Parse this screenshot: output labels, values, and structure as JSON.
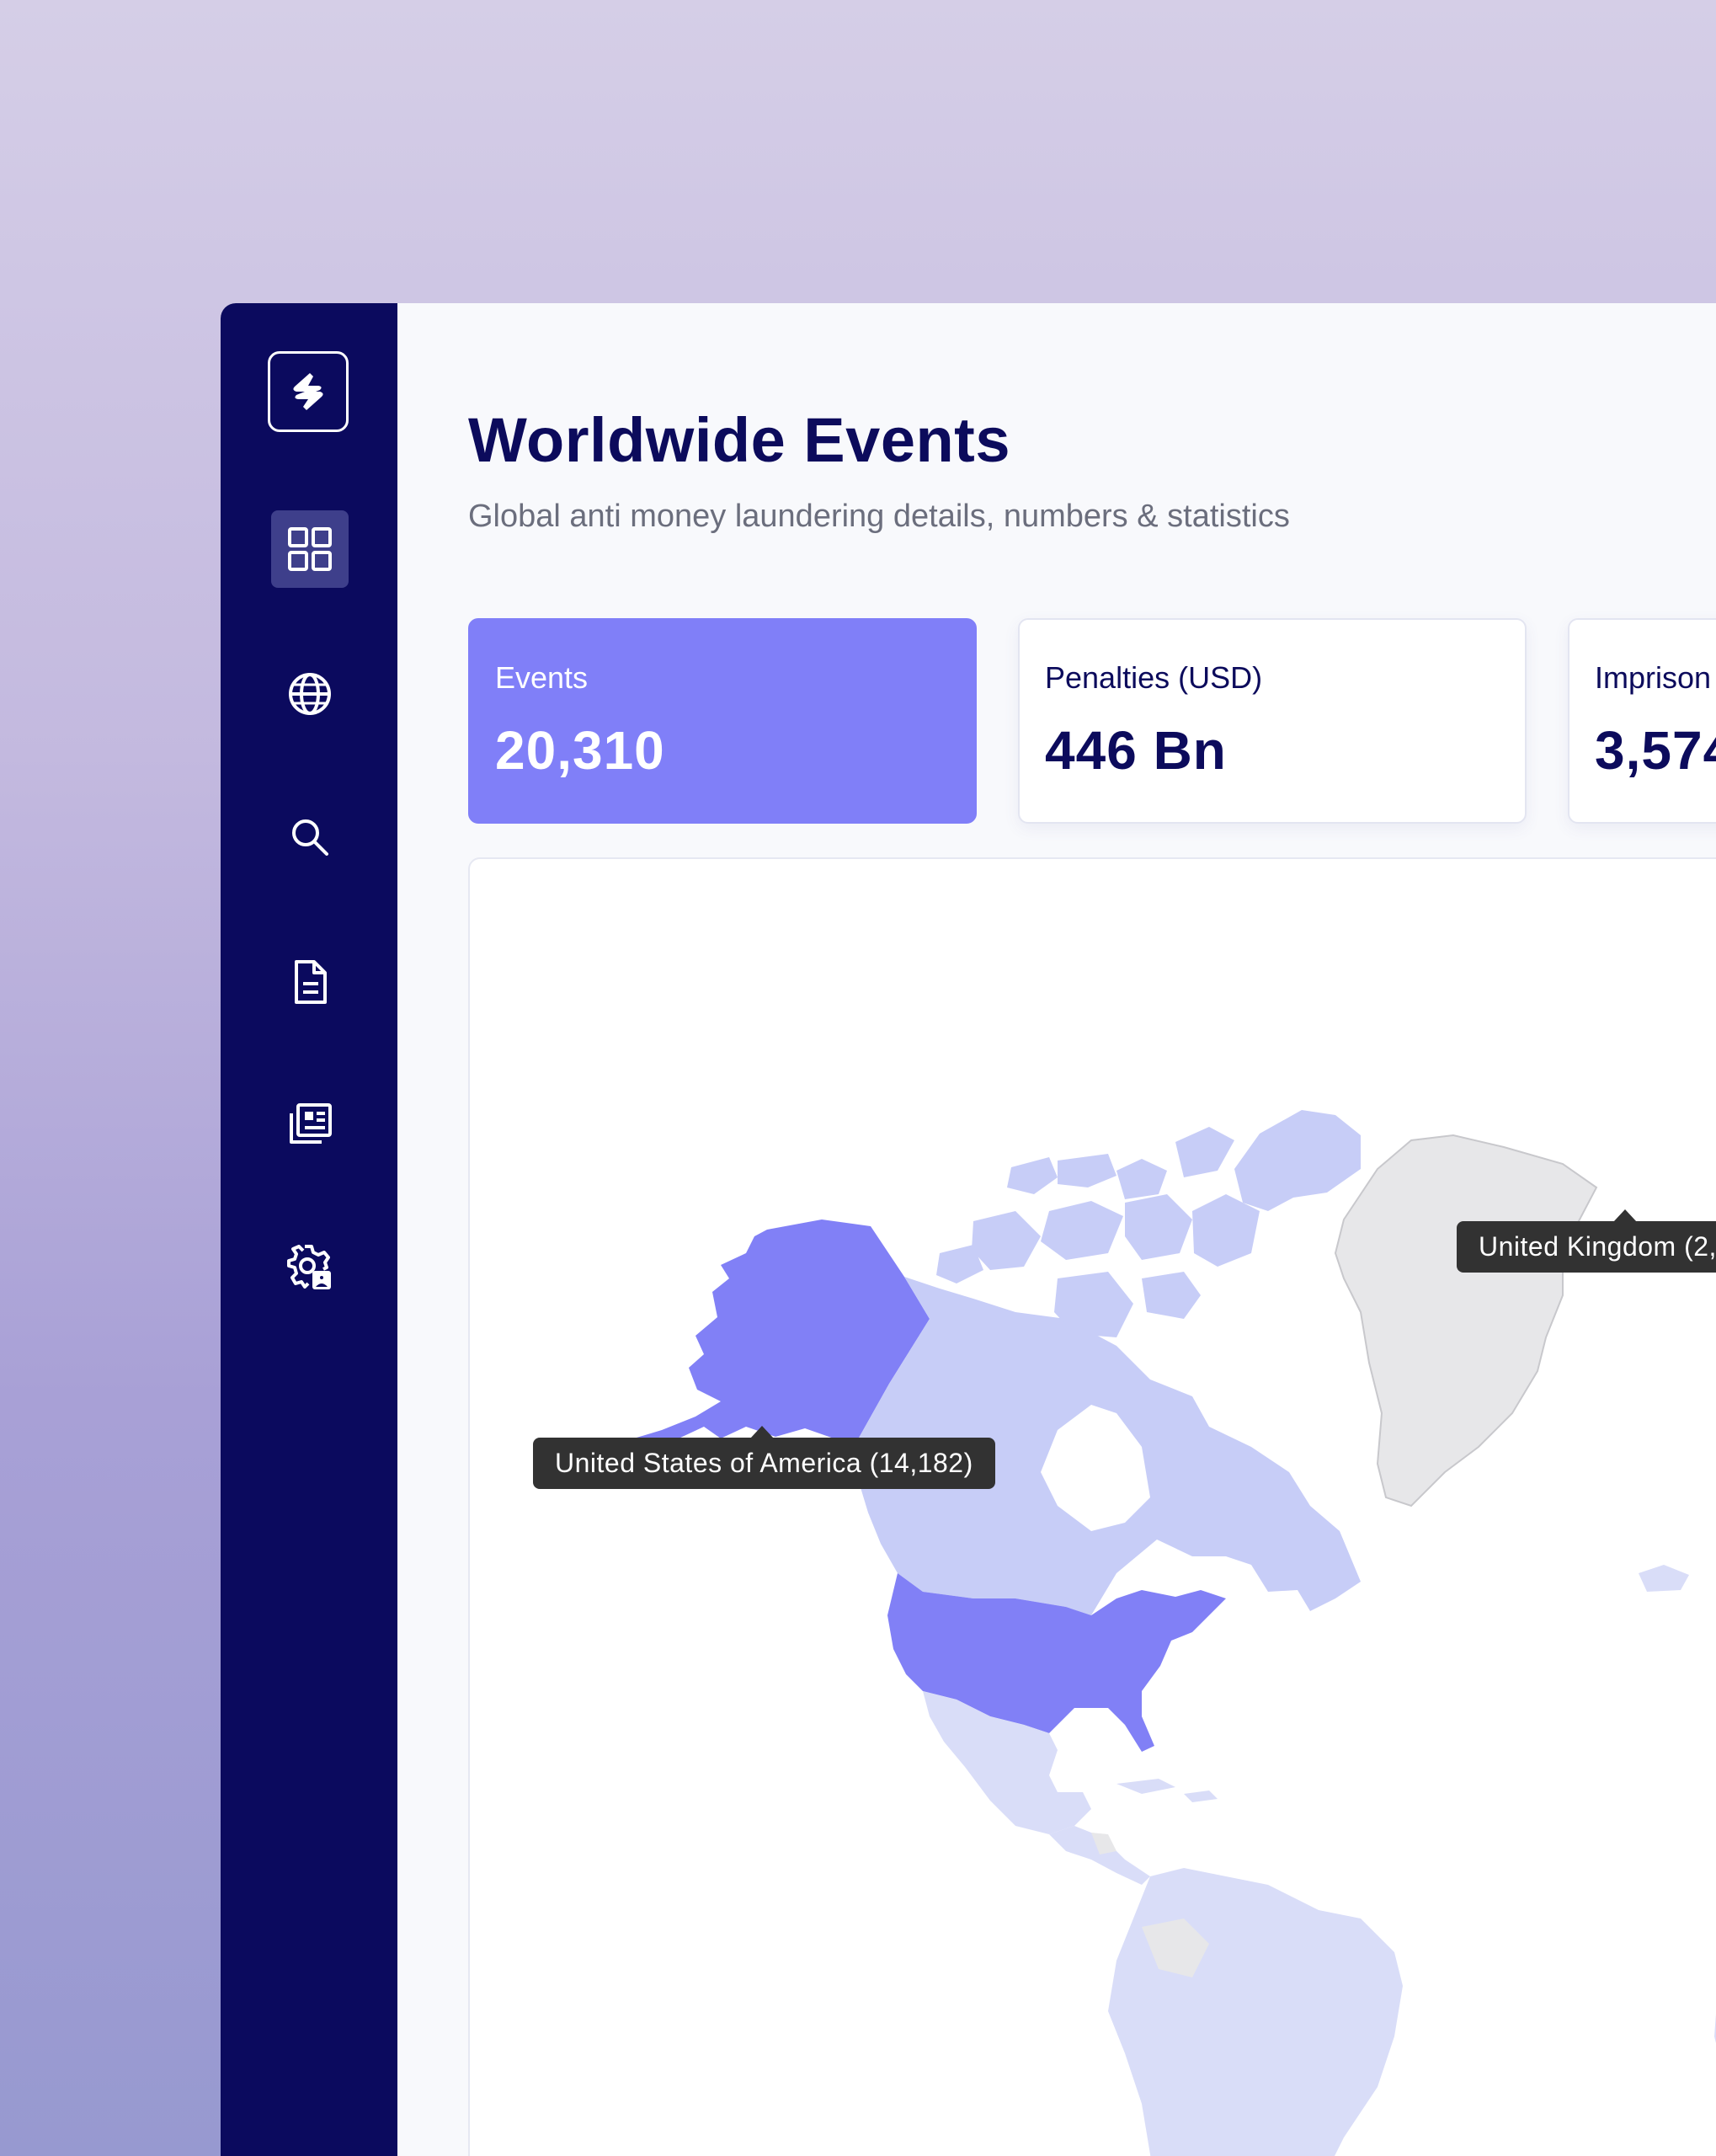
{
  "sidebar": {
    "logo_icon": "app-logo-icon",
    "items": [
      {
        "icon": "dashboard-grid-icon",
        "active": true
      },
      {
        "icon": "globe-icon",
        "active": false
      },
      {
        "icon": "search-icon",
        "active": false
      },
      {
        "icon": "document-icon",
        "active": false
      },
      {
        "icon": "news-icon",
        "active": false
      },
      {
        "icon": "user-settings-icon",
        "active": false
      }
    ]
  },
  "page": {
    "title": "Worldwide Events",
    "subtitle": "Global anti money laundering details, numbers & statistics"
  },
  "stats": [
    {
      "label": "Events",
      "value": "20,310",
      "highlighted": true
    },
    {
      "label": "Penalties (USD)",
      "value": "446 Bn",
      "highlighted": false
    },
    {
      "label": "Imprison",
      "value": "3,574",
      "highlighted": false
    }
  ],
  "map": {
    "tooltips": {
      "usa": "United States of America (14,182)",
      "uk": "United Kingdom (2,"
    },
    "colors": {
      "highest": "#8180f6",
      "medium": "#c7cdf7",
      "low": "#d9ddf8",
      "no_data": "#e7e7e9"
    }
  },
  "colors": {
    "sidebar": "#0b0a5e",
    "accent": "#807ff8",
    "title": "#0c0b5c"
  }
}
